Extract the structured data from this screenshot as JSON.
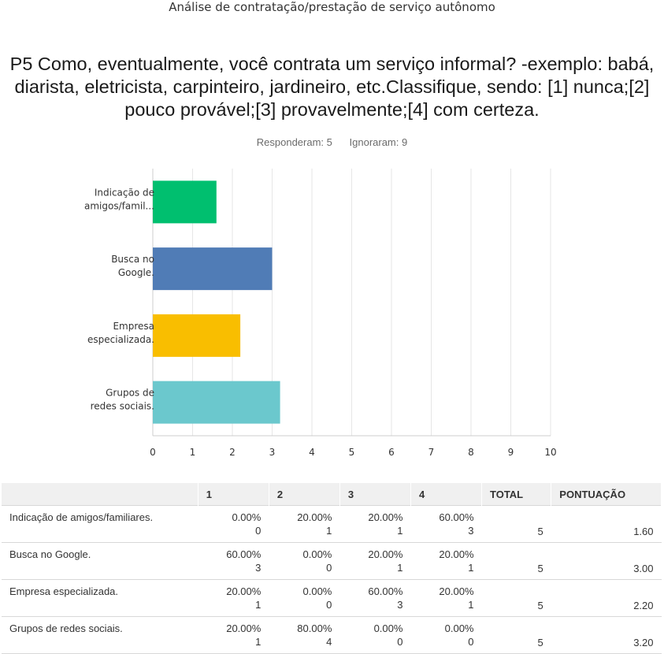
{
  "survey_title": "Análise de contratação/prestação de serviço autônomo",
  "question": "P5 Como, eventualmente, você contrata um serviço informal? -exemplo: babá, diarista, eletricista, carpinteiro, jardineiro, etc.Classifique, sendo: [1] nunca;[2] pouco provável;[3] provavelmente;[4] com certeza.",
  "stats": {
    "answered": "Responderam: 5",
    "skipped": "Ignoraram: 9"
  },
  "chart_data": {
    "type": "bar",
    "orientation": "horizontal",
    "categories": [
      [
        "Indicação de",
        "amigos/famil..."
      ],
      [
        "Busca no",
        "Google."
      ],
      [
        "Empresa",
        "especializada."
      ],
      [
        "Grupos de",
        "redes sociais."
      ]
    ],
    "values": [
      1.6,
      3.0,
      2.2,
      3.2
    ],
    "colors": [
      "#00bf6f",
      "#507cb6",
      "#f9be00",
      "#6bc8cd"
    ],
    "xlim": [
      0,
      10
    ],
    "xticks": [
      "0",
      "1",
      "2",
      "3",
      "4",
      "5",
      "6",
      "7",
      "8",
      "9",
      "10"
    ],
    "grid": true,
    "title": "",
    "xlabel": "",
    "ylabel": ""
  },
  "table": {
    "headers": [
      "",
      "1",
      "2",
      "3",
      "4",
      "TOTAL",
      "PONTUAÇÃO"
    ],
    "rows": [
      {
        "label": "Indicação de amigos/familiares.",
        "cells": [
          [
            "0.00%",
            "0"
          ],
          [
            "20.00%",
            "1"
          ],
          [
            "20.00%",
            "1"
          ],
          [
            "60.00%",
            "3"
          ]
        ],
        "total": "5",
        "score": "1.60"
      },
      {
        "label": "Busca no Google.",
        "cells": [
          [
            "60.00%",
            "3"
          ],
          [
            "0.00%",
            "0"
          ],
          [
            "20.00%",
            "1"
          ],
          [
            "20.00%",
            "1"
          ]
        ],
        "total": "5",
        "score": "3.00"
      },
      {
        "label": "Empresa especializada.",
        "cells": [
          [
            "20.00%",
            "1"
          ],
          [
            "0.00%",
            "0"
          ],
          [
            "60.00%",
            "3"
          ],
          [
            "20.00%",
            "1"
          ]
        ],
        "total": "5",
        "score": "2.20"
      },
      {
        "label": "Grupos de redes sociais.",
        "cells": [
          [
            "20.00%",
            "1"
          ],
          [
            "80.00%",
            "4"
          ],
          [
            "0.00%",
            "0"
          ],
          [
            "0.00%",
            "0"
          ]
        ],
        "total": "5",
        "score": "3.20"
      }
    ]
  }
}
